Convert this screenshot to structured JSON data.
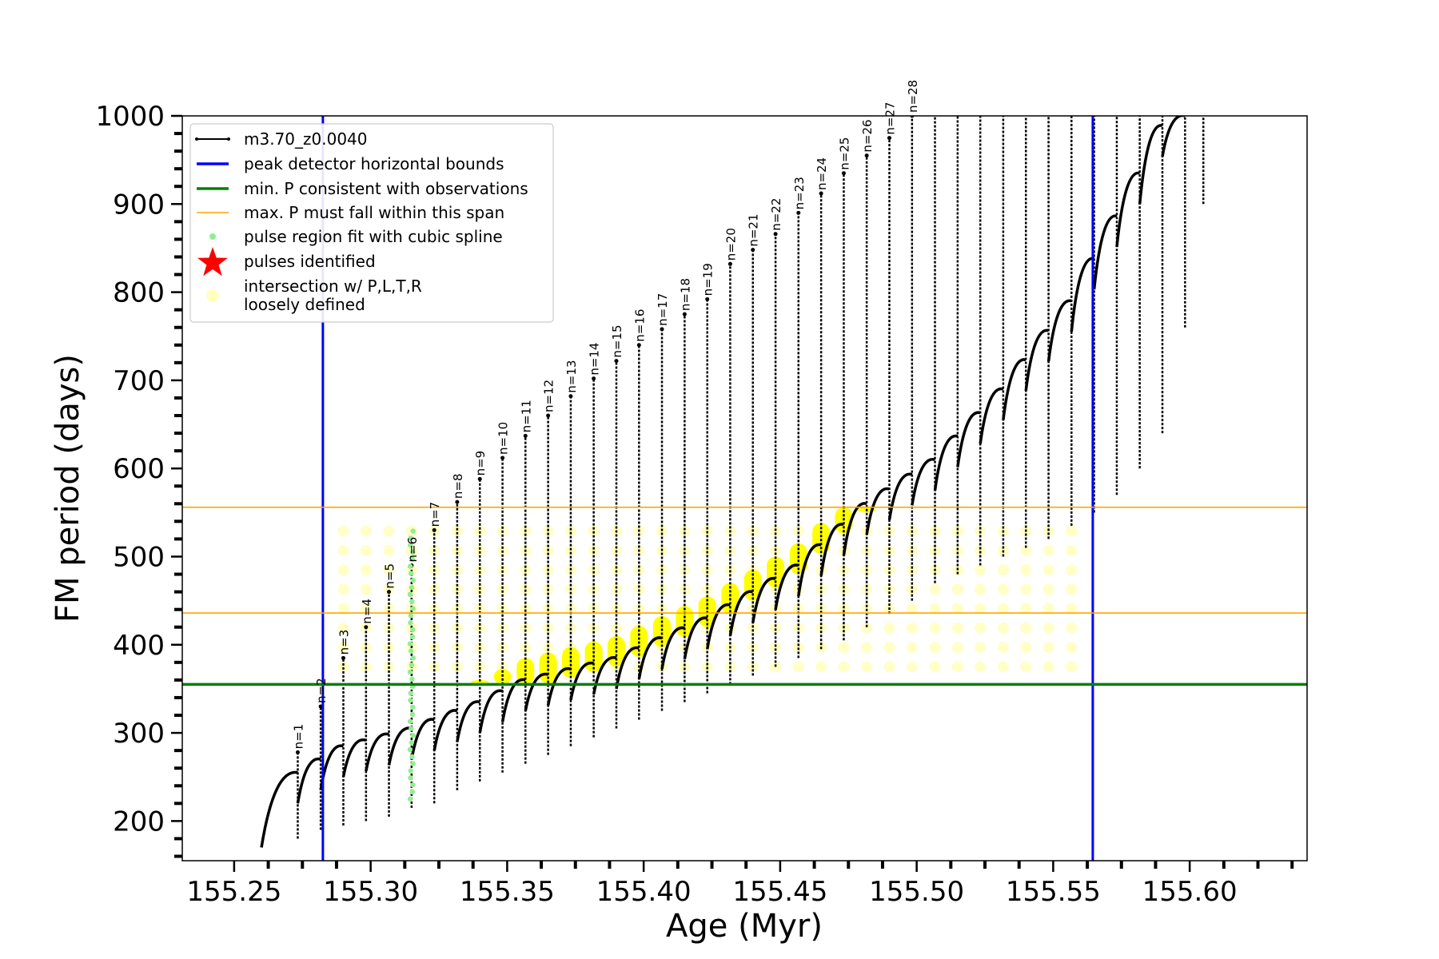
{
  "chart_data": {
    "type": "scatter",
    "xlabel": "Age (Myr)",
    "ylabel": "FM period (days)",
    "xlim": [
      155.231,
      155.643
    ],
    "ylim": [
      155,
      1000
    ],
    "xticks": [
      155.25,
      155.3,
      155.35,
      155.4,
      155.45,
      155.5,
      155.55,
      155.6
    ],
    "xtick_labels": [
      "155.25",
      "155.30",
      "155.35",
      "155.40",
      "155.45",
      "155.50",
      "155.55",
      "155.60"
    ],
    "yticks": [
      200,
      300,
      400,
      500,
      600,
      700,
      800,
      900,
      1000
    ],
    "ytick_labels": [
      "200",
      "300",
      "400",
      "500",
      "600",
      "700",
      "800",
      "900",
      "1000"
    ],
    "grid": false,
    "legend_placement": "top-left",
    "legend": [
      {
        "label": "m3.70_z0.0040",
        "kind": "line-marker",
        "color": "#000000"
      },
      {
        "label": "peak detector horizontal bounds",
        "kind": "line",
        "color": "#0000ff"
      },
      {
        "label": "min. P consistent with observations",
        "kind": "line",
        "color": "#008000"
      },
      {
        "label": "max. P must fall within this span",
        "kind": "thin-line",
        "color": "#ffa500"
      },
      {
        "label": "pulse region fit with cubic spline",
        "kind": "dot",
        "color": "#90ee90"
      },
      {
        "label": "pulses identified",
        "kind": "star",
        "color": "#ff0000"
      },
      {
        "label": "intersection w/ P,L,T,R",
        "label2": "loosely defined",
        "kind": "dot-light",
        "color": "#ffffc0"
      }
    ],
    "vertical_lines": [
      {
        "name": "peak detector horizontal bounds",
        "x": 155.2825,
        "color": "#0000ff"
      },
      {
        "name": "peak detector horizontal bounds",
        "x": 155.5645,
        "color": "#0000ff"
      }
    ],
    "horizontal_lines": [
      {
        "name": "min. P consistent with observations",
        "y": 355,
        "color": "#008000"
      },
      {
        "name": "max. P must fall within this span",
        "y": 436,
        "color": "#ffa500"
      },
      {
        "name": "max. P must fall within this span",
        "y": 556,
        "color": "#ffa500"
      }
    ],
    "series": [
      {
        "name": "m3.70_z0.0040",
        "color": "#000000",
        "pulses": [
          {
            "label": "n=1",
            "x": 155.2733,
            "peak": 278,
            "base": 180
          },
          {
            "label": "n=2",
            "x": 155.2817,
            "peak": 330,
            "base": 190
          },
          {
            "label": "n=3",
            "x": 155.29,
            "peak": 385,
            "base": 195
          },
          {
            "label": "n=4",
            "x": 155.2983,
            "peak": 420,
            "base": 200
          },
          {
            "label": "n=5",
            "x": 155.3067,
            "peak": 460,
            "base": 205
          },
          {
            "label": "n=6",
            "x": 155.315,
            "peak": 490,
            "base": 215
          },
          {
            "label": "n=7",
            "x": 155.3233,
            "peak": 530,
            "base": 220
          },
          {
            "label": "n=8",
            "x": 155.3317,
            "peak": 562,
            "base": 235
          },
          {
            "label": "n=9",
            "x": 155.34,
            "peak": 588,
            "base": 245
          },
          {
            "label": "n=10",
            "x": 155.3483,
            "peak": 612,
            "base": 255
          },
          {
            "label": "n=11",
            "x": 155.3567,
            "peak": 637,
            "base": 265
          },
          {
            "label": "n=12",
            "x": 155.365,
            "peak": 660,
            "base": 275
          },
          {
            "label": "n=13",
            "x": 155.3733,
            "peak": 682,
            "base": 285
          },
          {
            "label": "n=14",
            "x": 155.3817,
            "peak": 702,
            "base": 295
          },
          {
            "label": "n=15",
            "x": 155.39,
            "peak": 722,
            "base": 305
          },
          {
            "label": "n=16",
            "x": 155.3983,
            "peak": 740,
            "base": 315
          },
          {
            "label": "n=17",
            "x": 155.4067,
            "peak": 758,
            "base": 325
          },
          {
            "label": "n=18",
            "x": 155.415,
            "peak": 775,
            "base": 335
          },
          {
            "label": "n=19",
            "x": 155.4233,
            "peak": 792,
            "base": 345
          },
          {
            "label": "n=20",
            "x": 155.4317,
            "peak": 832,
            "base": 355
          },
          {
            "label": "n=21",
            "x": 155.44,
            "peak": 848,
            "base": 365
          },
          {
            "label": "n=22",
            "x": 155.4483,
            "peak": 866,
            "base": 375
          },
          {
            "label": "n=23",
            "x": 155.4567,
            "peak": 890,
            "base": 385
          },
          {
            "label": "n=24",
            "x": 155.465,
            "peak": 912,
            "base": 395
          },
          {
            "label": "n=25",
            "x": 155.4733,
            "peak": 935,
            "base": 405
          },
          {
            "label": "n=26",
            "x": 155.4817,
            "peak": 955,
            "base": 420
          },
          {
            "label": "n=27",
            "x": 155.49,
            "peak": 975,
            "base": 435
          },
          {
            "label": "n=28",
            "x": 155.4983,
            "peak": 1000,
            "base": 450
          }
        ],
        "ridge": [
          {
            "x": 155.26,
            "y": 205
          },
          {
            "x": 155.2733,
            "y": 255
          },
          {
            "x": 155.29,
            "y": 285
          },
          {
            "x": 155.315,
            "y": 305
          },
          {
            "x": 155.34,
            "y": 335
          },
          {
            "x": 155.3567,
            "y": 360
          },
          {
            "x": 155.39,
            "y": 385
          },
          {
            "x": 155.4233,
            "y": 430
          },
          {
            "x": 155.4567,
            "y": 490
          },
          {
            "x": 155.4817,
            "y": 560
          },
          {
            "x": 155.5067,
            "y": 610
          },
          {
            "x": 155.5317,
            "y": 690
          },
          {
            "x": 155.5567,
            "y": 790
          },
          {
            "x": 155.5817,
            "y": 935
          },
          {
            "x": 155.5917,
            "y": 1000
          }
        ],
        "tail_pulses": [
          {
            "x": 155.5067,
            "bottom": 470
          },
          {
            "x": 155.515,
            "bottom": 480
          },
          {
            "x": 155.5233,
            "bottom": 490
          },
          {
            "x": 155.5317,
            "bottom": 500
          },
          {
            "x": 155.54,
            "bottom": 510
          },
          {
            "x": 155.5483,
            "bottom": 520
          },
          {
            "x": 155.5567,
            "bottom": 535
          },
          {
            "x": 155.565,
            "bottom": 550
          },
          {
            "x": 155.5733,
            "bottom": 570
          },
          {
            "x": 155.5817,
            "bottom": 600
          },
          {
            "x": 155.59,
            "bottom": 640
          },
          {
            "x": 155.5983,
            "bottom": 760
          },
          {
            "x": 155.605,
            "bottom": 900
          }
        ]
      },
      {
        "name": "pulse region fit with cubic spline",
        "color": "#90ee90",
        "x": 155.315,
        "y_range": [
          225,
          530
        ]
      },
      {
        "name": "intersection w/ P,L,T,R loosely defined",
        "color": "#ffff00",
        "y_range": [
          355,
          556
        ]
      }
    ]
  }
}
